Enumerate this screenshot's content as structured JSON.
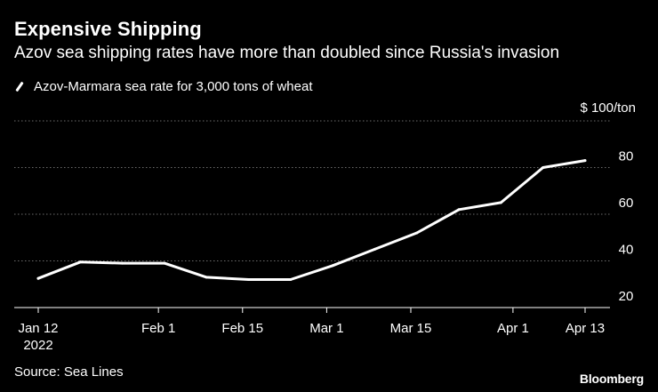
{
  "header": {
    "title": "Expensive Shipping",
    "subtitle": "Azov sea shipping rates have more than doubled since Russia's invasion"
  },
  "legend": {
    "label": "Azov-Marmara sea rate for 3,000 tons of wheat"
  },
  "footer": {
    "source": "Source: Sea Lines",
    "brand": "Bloomberg"
  },
  "colors": {
    "background": "#000000",
    "line": "#ffffff",
    "grid": "#6b6b6b",
    "axis": "#ffffff",
    "text": "#ffffff"
  },
  "chart_data": {
    "type": "line",
    "title": "Expensive Shipping",
    "subtitle": "Azov sea shipping rates have more than doubled since Russia's invasion",
    "xlabel": "",
    "ylabel": "$ 100/ton",
    "y_unit_label": "$ 100/ton",
    "ylim": [
      20,
      100
    ],
    "yticks": [
      20,
      40,
      60,
      80
    ],
    "grid": true,
    "legend_position": "top-left",
    "x_domain_days": [
      0,
      91
    ],
    "xticks": [
      {
        "day": 0,
        "label": "Jan 12",
        "sublabel": "2022"
      },
      {
        "day": 20,
        "label": "Feb 1",
        "sublabel": ""
      },
      {
        "day": 34,
        "label": "Feb 15",
        "sublabel": ""
      },
      {
        "day": 48,
        "label": "Mar 1",
        "sublabel": ""
      },
      {
        "day": 62,
        "label": "Mar 15",
        "sublabel": ""
      },
      {
        "day": 79,
        "label": "Apr 1",
        "sublabel": ""
      },
      {
        "day": 91,
        "label": "Apr 13",
        "sublabel": ""
      }
    ],
    "series": [
      {
        "name": "Azov-Marmara sea rate for 3,000 tons of wheat",
        "x_days": [
          0,
          7,
          14,
          21,
          28,
          35,
          42,
          49,
          56,
          63,
          70,
          77,
          84,
          91
        ],
        "dates": [
          "Jan 12",
          "Jan 19",
          "Jan 26",
          "Feb 2",
          "Feb 9",
          "Feb 16",
          "Feb 23",
          "Mar 2",
          "Mar 9",
          "Mar 16",
          "Mar 23",
          "Mar 30",
          "Apr 6",
          "Apr 13"
        ],
        "values": [
          32.5,
          39.5,
          39,
          39,
          33,
          32,
          32,
          38,
          45,
          52,
          62,
          65,
          80,
          83
        ]
      }
    ]
  }
}
